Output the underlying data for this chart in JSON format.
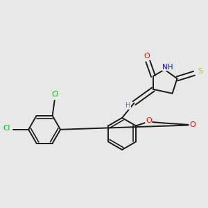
{
  "background_color": "#e8e8e8",
  "bond_color": "#1a1a1a",
  "atom_colors": {
    "O": "#ff0000",
    "N": "#0000ff",
    "S": "#cccc00",
    "Cl": "#00bb00",
    "H": "#708090",
    "C": "#1a1a1a"
  },
  "lw": 1.4,
  "dbl_off": 0.012
}
